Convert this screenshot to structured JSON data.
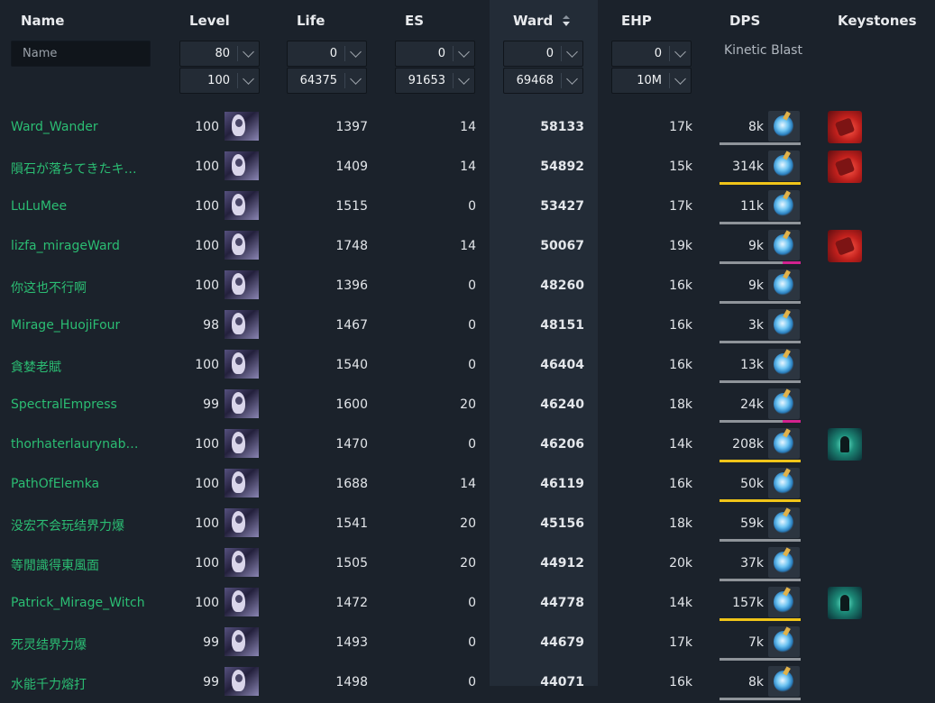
{
  "header": {
    "name": "Name",
    "level": "Level",
    "life": "Life",
    "es": "ES",
    "ward": "Ward",
    "ehp": "EHP",
    "dps": "DPS",
    "keystones": "Keystones"
  },
  "filters": {
    "name_placeholder": "Name",
    "level_min": "80",
    "level_max": "100",
    "life_min": "0",
    "life_max": "64375",
    "es_min": "0",
    "es_max": "91653",
    "ward_min": "0",
    "ward_max": "69468",
    "ehp_min": "0",
    "ehp_max": "10M",
    "skill": "Kinetic Blast"
  },
  "sort": {
    "column": "Ward",
    "direction": "descending"
  },
  "colors": {
    "background": "#1b222b",
    "ward_column": "#232c37",
    "name_link": "#2bbd73",
    "bar_gray": "#8f949a",
    "bar_yellow": "#f0c419",
    "bar_magenta": "#d2228f"
  },
  "rows": [
    {
      "name": "Ward_Wander",
      "level": "100",
      "life": "1397",
      "es": "14",
      "ward": "58133",
      "ehp": "17k",
      "dps": "8k",
      "avatar": "character-portrait-icon",
      "skill": "kinetic-blast-icon",
      "bar": "gray",
      "keystone": "red"
    },
    {
      "name": "隕石が落ちてきたキ…",
      "level": "100",
      "life": "1409",
      "es": "14",
      "ward": "54892",
      "ehp": "15k",
      "dps": "314k",
      "avatar": "character-portrait-icon",
      "skill": "kinetic-blast-icon",
      "bar": "yellow",
      "keystone": "red"
    },
    {
      "name": "LuLuMee",
      "level": "100",
      "life": "1515",
      "es": "0",
      "ward": "53427",
      "ehp": "17k",
      "dps": "11k",
      "avatar": "character-portrait-icon",
      "skill": "kinetic-blast-icon",
      "bar": "gray",
      "keystone": ""
    },
    {
      "name": "lizfa_mirageWard",
      "level": "100",
      "life": "1748",
      "es": "14",
      "ward": "50067",
      "ehp": "19k",
      "dps": "9k",
      "avatar": "character-portrait-icon",
      "skill": "kinetic-blast-icon",
      "bar": "gm",
      "keystone": "red"
    },
    {
      "name": "你这也不行啊",
      "level": "100",
      "life": "1396",
      "es": "0",
      "ward": "48260",
      "ehp": "16k",
      "dps": "9k",
      "avatar": "character-portrait-icon",
      "skill": "kinetic-blast-icon",
      "bar": "gray",
      "keystone": ""
    },
    {
      "name": "Mirage_HuojiFour",
      "level": "98",
      "life": "1467",
      "es": "0",
      "ward": "48151",
      "ehp": "16k",
      "dps": "3k",
      "avatar": "character-portrait-icon",
      "skill": "kinetic-blast-icon",
      "bar": "gray",
      "keystone": ""
    },
    {
      "name": "貪婪老賦",
      "level": "100",
      "life": "1540",
      "es": "0",
      "ward": "46404",
      "ehp": "16k",
      "dps": "13k",
      "avatar": "character-portrait-icon",
      "skill": "kinetic-blast-icon",
      "bar": "gray",
      "keystone": ""
    },
    {
      "name": "SpectralEmpress",
      "level": "99",
      "life": "1600",
      "es": "20",
      "ward": "46240",
      "ehp": "18k",
      "dps": "24k",
      "avatar": "character-portrait-icon",
      "skill": "kinetic-blast-icon",
      "bar": "gm",
      "keystone": ""
    },
    {
      "name": "thorhaterlaurynabuser",
      "level": "100",
      "life": "1470",
      "es": "0",
      "ward": "46206",
      "ehp": "14k",
      "dps": "208k",
      "avatar": "character-portrait-icon",
      "skill": "kinetic-blast-icon",
      "bar": "yellow",
      "keystone": "teal"
    },
    {
      "name": "PathOfElemka",
      "level": "100",
      "life": "1688",
      "es": "14",
      "ward": "46119",
      "ehp": "16k",
      "dps": "50k",
      "avatar": "character-portrait-icon",
      "skill": "kinetic-blast-icon",
      "bar": "yellow",
      "keystone": ""
    },
    {
      "name": "没宏不会玩结界力爆",
      "level": "100",
      "life": "1541",
      "es": "20",
      "ward": "45156",
      "ehp": "18k",
      "dps": "59k",
      "avatar": "character-portrait-icon",
      "skill": "kinetic-blast-icon",
      "bar": "gray",
      "keystone": ""
    },
    {
      "name": "等閒識得東風面",
      "level": "100",
      "life": "1505",
      "es": "20",
      "ward": "44912",
      "ehp": "20k",
      "dps": "37k",
      "avatar": "character-portrait-icon",
      "skill": "kinetic-blast-icon",
      "bar": "gray",
      "keystone": ""
    },
    {
      "name": "Patrick_Mirage_Witch",
      "level": "100",
      "life": "1472",
      "es": "0",
      "ward": "44778",
      "ehp": "14k",
      "dps": "157k",
      "avatar": "character-portrait-icon",
      "skill": "kinetic-blast-icon",
      "bar": "yellow",
      "keystone": "teal"
    },
    {
      "name": "死灵结界力爆",
      "level": "99",
      "life": "1493",
      "es": "0",
      "ward": "44679",
      "ehp": "17k",
      "dps": "7k",
      "avatar": "character-portrait-icon",
      "skill": "kinetic-blast-icon",
      "bar": "gray",
      "keystone": ""
    },
    {
      "name": "水能千力熔打",
      "level": "99",
      "life": "1498",
      "es": "0",
      "ward": "44071",
      "ehp": "16k",
      "dps": "8k",
      "avatar": "character-portrait-icon",
      "skill": "kinetic-blast-icon",
      "bar": "gray",
      "keystone": ""
    }
  ]
}
